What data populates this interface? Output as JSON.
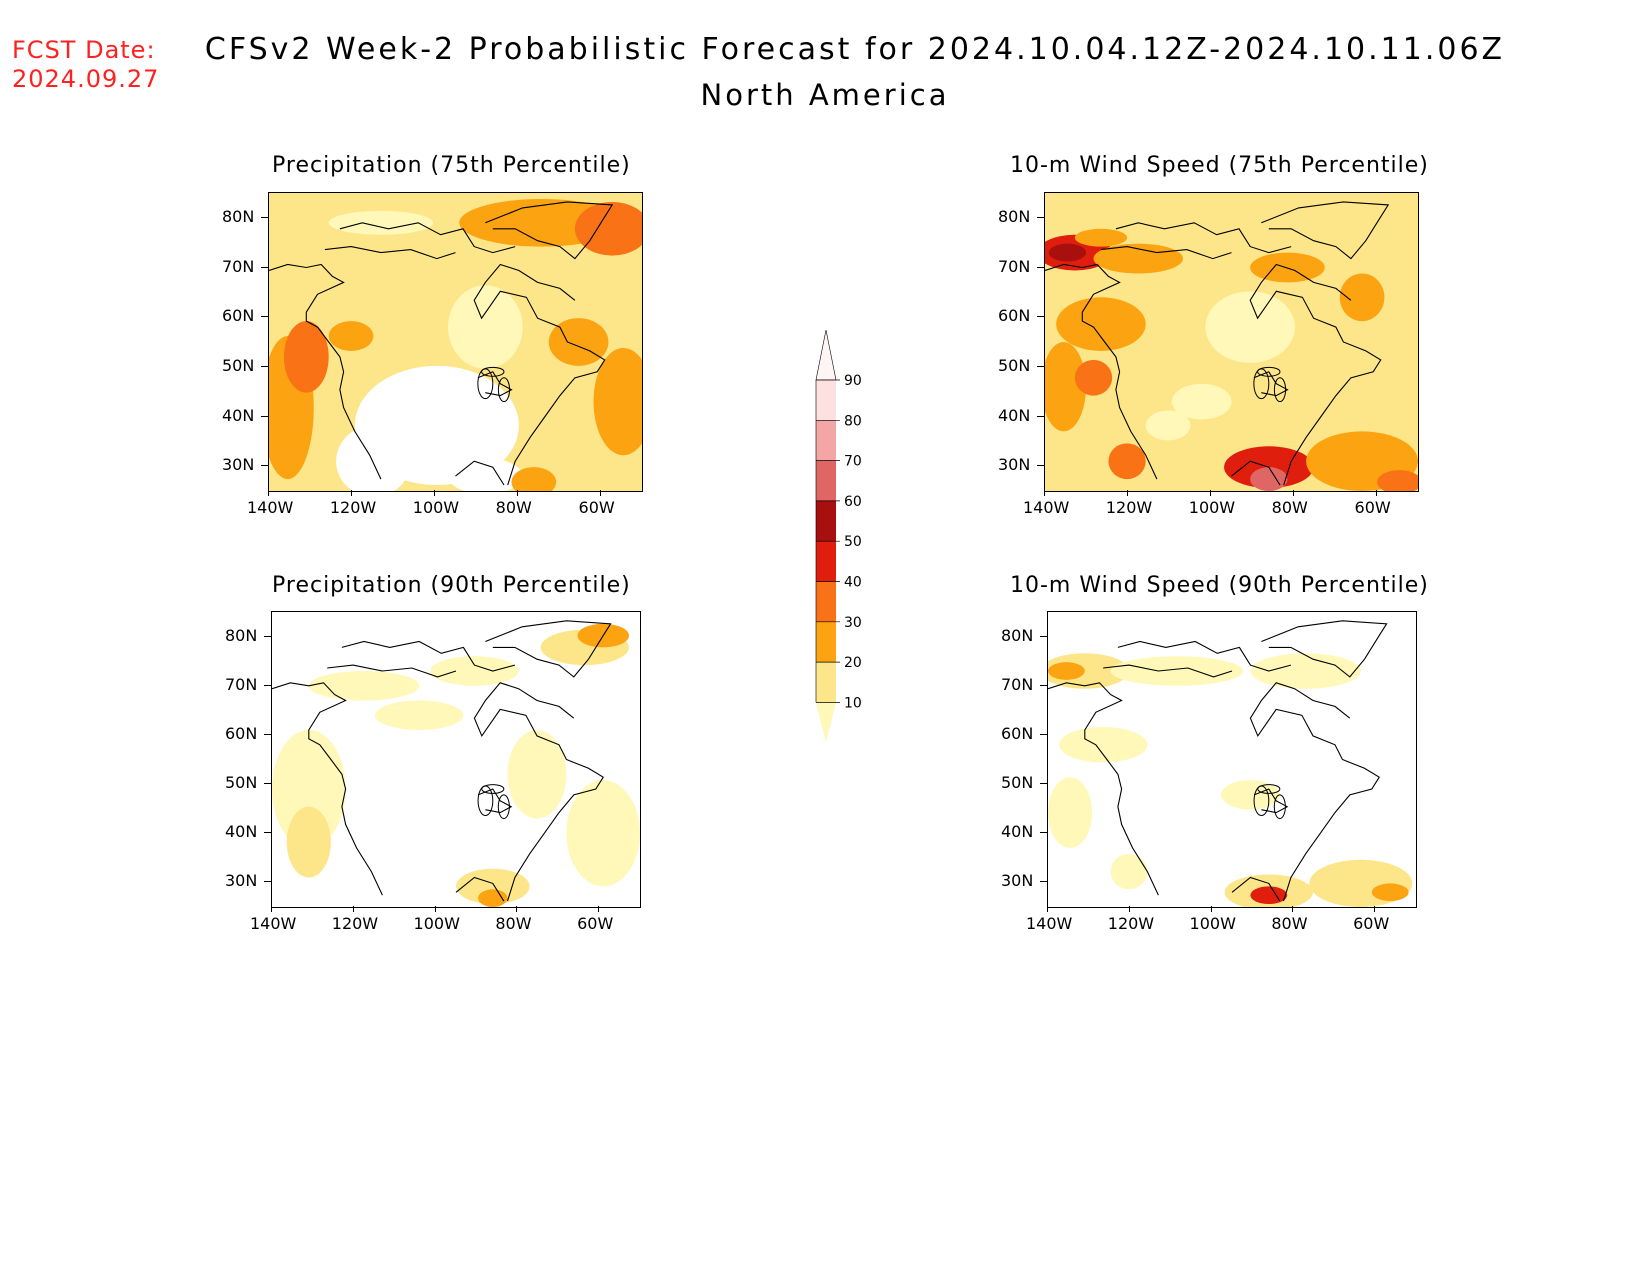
{
  "header": {
    "fcst_label": "FCST Date:",
    "fcst_date": "2024.09.27",
    "title": "CFSv2 Week-2 Probabilistic Forecast for 2024.10.04.12Z-2024.10.11.06Z",
    "subtitle": "North America"
  },
  "panels": [
    {
      "id": "p75",
      "title": "Precipitation (75th Percentile)"
    },
    {
      "id": "w75",
      "title": "10-m Wind Speed (75th Percentile)"
    },
    {
      "id": "p90",
      "title": "Precipitation (90th Percentile)"
    },
    {
      "id": "w90",
      "title": "10-m Wind Speed (90th Percentile)"
    }
  ],
  "axes": {
    "lat_labels": [
      "80N",
      "70N",
      "60N",
      "50N",
      "40N",
      "30N"
    ],
    "lon_labels": [
      "140W",
      "120W",
      "100W",
      "80W",
      "60W"
    ],
    "lat_range": [
      25,
      85
    ],
    "lon_range": [
      -140,
      -50
    ]
  },
  "colorbar": {
    "levels": [
      "10",
      "20",
      "30",
      "40",
      "50",
      "60",
      "70",
      "80",
      "90"
    ],
    "colors": [
      "#fff8b8",
      "#fde68a",
      "#fca311",
      "#f97316",
      "#e01e0e",
      "#a80f0f",
      "#e06666",
      "#f4a6a6",
      "#fde0e0",
      "#fff5f5"
    ]
  }
}
